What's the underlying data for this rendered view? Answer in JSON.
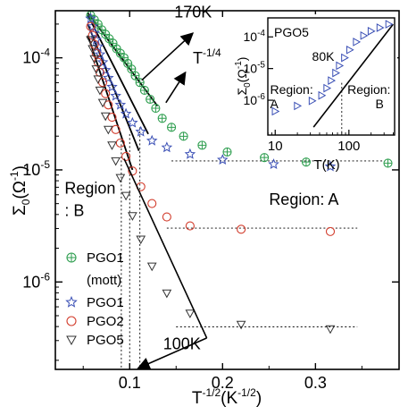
{
  "chart_data": {
    "type": "scatter",
    "xlabel": "T",
    "xlabel_sup": "-1/2",
    "xlabel_unit": "(K",
    "xlabel_unit_sup": "-1/2",
    "xlabel_close": ")",
    "ylabel": "Σ",
    "ylabel_sub": "0",
    "ylabel_unit": "(Ω",
    "ylabel_unit_sup": "-1",
    "ylabel_close": ")",
    "xlim": [
      0.02,
      0.39
    ],
    "ylim_log10": [
      -6.78,
      -3.58
    ],
    "log_y": true,
    "x_ticks": [
      {
        "v": 0.1,
        "label": "0.1"
      },
      {
        "v": 0.2,
        "label": "0.2"
      },
      {
        "v": 0.3,
        "label": "0.3"
      }
    ],
    "y_ticks": [
      {
        "exp": -6,
        "base": "10",
        "sup": "-6"
      },
      {
        "exp": -5,
        "base": "10",
        "sup": "-5"
      },
      {
        "exp": -4,
        "base": "10",
        "sup": "-4"
      }
    ],
    "series": [
      {
        "name": "PGO1",
        "name2": "(mott)",
        "marker": "circle-cross",
        "color": "#2e9e4f",
        "points": [
          [
            0.058,
            -3.62
          ],
          [
            0.062,
            -3.66
          ],
          [
            0.066,
            -3.7
          ],
          [
            0.07,
            -3.75
          ],
          [
            0.074,
            -3.79
          ],
          [
            0.078,
            -3.83
          ],
          [
            0.082,
            -3.87
          ],
          [
            0.086,
            -3.92
          ],
          [
            0.09,
            -3.96
          ],
          [
            0.094,
            -4.0
          ],
          [
            0.098,
            -4.05
          ],
          [
            0.102,
            -4.1
          ],
          [
            0.106,
            -4.16
          ],
          [
            0.111,
            -4.22
          ],
          [
            0.116,
            -4.29
          ],
          [
            0.122,
            -4.37
          ],
          [
            0.128,
            -4.45
          ],
          [
            0.135,
            -4.54
          ],
          [
            0.145,
            -4.62
          ],
          [
            0.158,
            -4.7
          ],
          [
            0.178,
            -4.78
          ],
          [
            0.205,
            -4.84
          ],
          [
            0.245,
            -4.89
          ],
          [
            0.29,
            -4.93
          ],
          [
            0.378,
            -4.94
          ]
        ]
      },
      {
        "name": "PGO1",
        "marker": "star",
        "color": "#3a4fb5",
        "points": [
          [
            0.058,
            -3.65
          ],
          [
            0.06,
            -3.72
          ],
          [
            0.062,
            -3.78
          ],
          [
            0.064,
            -3.84
          ],
          [
            0.066,
            -3.9
          ],
          [
            0.068,
            -3.97
          ],
          [
            0.071,
            -4.04
          ],
          [
            0.074,
            -4.11
          ],
          [
            0.077,
            -4.18
          ],
          [
            0.081,
            -4.26
          ],
          [
            0.085,
            -4.34
          ],
          [
            0.09,
            -4.42
          ],
          [
            0.096,
            -4.5
          ],
          [
            0.103,
            -4.58
          ],
          [
            0.112,
            -4.66
          ],
          [
            0.124,
            -4.74
          ],
          [
            0.14,
            -4.8
          ],
          [
            0.165,
            -4.86
          ],
          [
            0.2,
            -4.91
          ],
          [
            0.255,
            -4.95
          ],
          [
            0.316,
            -4.97
          ]
        ]
      },
      {
        "name": "PGO2",
        "marker": "circle",
        "color": "#d23c2c",
        "points": [
          [
            0.058,
            -3.72
          ],
          [
            0.06,
            -3.8
          ],
          [
            0.062,
            -3.88
          ],
          [
            0.064,
            -3.96
          ],
          [
            0.066,
            -4.04
          ],
          [
            0.068,
            -4.13
          ],
          [
            0.071,
            -4.22
          ],
          [
            0.074,
            -4.32
          ],
          [
            0.077,
            -4.42
          ],
          [
            0.081,
            -4.53
          ],
          [
            0.085,
            -4.64
          ],
          [
            0.09,
            -4.76
          ],
          [
            0.096,
            -4.88
          ],
          [
            0.103,
            -5.01
          ],
          [
            0.112,
            -5.15
          ],
          [
            0.124,
            -5.3
          ],
          [
            0.14,
            -5.42
          ],
          [
            0.165,
            -5.5
          ],
          [
            0.22,
            -5.53
          ],
          [
            0.316,
            -5.55
          ]
        ]
      },
      {
        "name": "PGO5",
        "marker": "triangle-down",
        "color": "#333333",
        "points": [
          [
            0.058,
            -3.84
          ],
          [
            0.06,
            -3.92
          ],
          [
            0.062,
            -4.01
          ],
          [
            0.064,
            -4.1
          ],
          [
            0.066,
            -4.19
          ],
          [
            0.068,
            -4.29
          ],
          [
            0.071,
            -4.4
          ],
          [
            0.074,
            -4.52
          ],
          [
            0.077,
            -4.64
          ],
          [
            0.081,
            -4.78
          ],
          [
            0.085,
            -4.92
          ],
          [
            0.09,
            -5.07
          ],
          [
            0.096,
            -5.23
          ],
          [
            0.103,
            -5.41
          ],
          [
            0.112,
            -5.62
          ],
          [
            0.124,
            -5.86
          ],
          [
            0.14,
            -6.1
          ],
          [
            0.165,
            -6.28
          ],
          [
            0.22,
            -6.38
          ],
          [
            0.316,
            -6.42
          ]
        ]
      }
    ],
    "fit_lines": [
      [
        [
          0.055,
          -3.6
        ],
        [
          0.13,
          -4.43
        ]
      ],
      [
        [
          0.055,
          -3.62
        ],
        [
          0.12,
          -4.68
        ]
      ],
      [
        [
          0.055,
          -3.7
        ],
        [
          0.11,
          -4.83
        ]
      ],
      [
        [
          0.055,
          -3.8
        ],
        [
          0.103,
          -5.0
        ]
      ]
    ],
    "dotted_lines": [
      [
        [
          0.145,
          -4.92
        ],
        [
          0.375,
          -4.92
        ]
      ],
      [
        [
          0.14,
          -5.52
        ],
        [
          0.345,
          -5.52
        ]
      ],
      [
        [
          0.15,
          -6.4
        ],
        [
          0.345,
          -6.4
        ]
      ],
      [
        [
          0.091,
          -4.7
        ],
        [
          0.091,
          -6.78
        ]
      ],
      [
        [
          0.1,
          -4.68
        ],
        [
          0.1,
          -6.78
        ]
      ],
      [
        [
          0.111,
          -4.62
        ],
        [
          0.111,
          -6.78
        ]
      ]
    ],
    "annotations": [
      {
        "text": "170K",
        "x": 0.148,
        "y": -3.64
      },
      {
        "text_base": "T",
        "text_sup": "-1/4",
        "x": 0.168,
        "y": -4.05
      },
      {
        "text": "Region: A",
        "x": 0.25,
        "y": -5.31
      },
      {
        "text": "Region",
        "x": 0.03,
        "y": -5.21
      },
      {
        "text": ": B",
        "x": 0.03,
        "y": -5.41
      },
      {
        "text": "100K",
        "x": 0.136,
        "y": -6.6
      }
    ],
    "arrows": [
      {
        "from": [
          0.113,
          -4.2
        ],
        "to": [
          0.168,
          -3.78
        ]
      },
      {
        "from": [
          0.139,
          -4.4
        ],
        "to": [
          0.16,
          -4.13
        ]
      },
      {
        "from": [
          0.183,
          -6.5
        ],
        "to": [
          0.109,
          -6.77
        ]
      }
    ],
    "arrow_only_lines": [
      [
        [
          0.094,
          -4.9
        ],
        [
          0.183,
          -6.5
        ]
      ]
    ],
    "inset": {
      "title": "PGO5",
      "xlabel": "T(K)",
      "ylabel": "Σ",
      "ylabel_sub": "0",
      "ylabel_unit": "(Ω",
      "ylabel_unit_sup": "-1",
      "ylabel_close": ")",
      "log_x": true,
      "log_y": true,
      "xlim_log10": [
        0.9,
        2.62
      ],
      "ylim_log10": [
        -7.1,
        -3.4
      ],
      "x_ticks": [
        {
          "exp": 1,
          "label": "10"
        },
        {
          "exp": 2,
          "label": "100"
        }
      ],
      "y_ticks": [
        {
          "exp": -6,
          "base": "10",
          "sup": "-6"
        },
        {
          "exp": -5,
          "base": "10",
          "sup": "-5"
        },
        {
          "exp": -4,
          "base": "10",
          "sup": "-4"
        }
      ],
      "series": {
        "marker": "triangle-right",
        "color": "#3a4fb5",
        "points": [
          [
            1.0,
            -6.35
          ],
          [
            1.3,
            -6.18
          ],
          [
            1.5,
            -6.02
          ],
          [
            1.63,
            -5.85
          ],
          [
            1.7,
            -5.62
          ],
          [
            1.76,
            -5.38
          ],
          [
            1.82,
            -5.14
          ],
          [
            1.87,
            -4.91
          ],
          [
            1.94,
            -4.66
          ],
          [
            2.01,
            -4.41
          ],
          [
            2.1,
            -4.16
          ],
          [
            2.2,
            -3.96
          ],
          [
            2.3,
            -3.82
          ],
          [
            2.42,
            -3.71
          ],
          [
            2.54,
            -3.6
          ]
        ]
      },
      "fit_line": [
        [
          1.52,
          -6.85
        ],
        [
          2.6,
          -3.6
        ]
      ],
      "dotted_x": 1.903,
      "annotations": [
        {
          "text": "80K",
          "x": 1.5,
          "y": -4.75
        },
        {
          "text": "Region:",
          "x": 0.93,
          "y": -5.8
        },
        {
          "text": "A",
          "x": 0.93,
          "y": -6.25
        },
        {
          "text": "Region:",
          "x": 1.98,
          "y": -5.8
        },
        {
          "text": "B",
          "x": 2.36,
          "y": -6.25
        }
      ]
    }
  }
}
